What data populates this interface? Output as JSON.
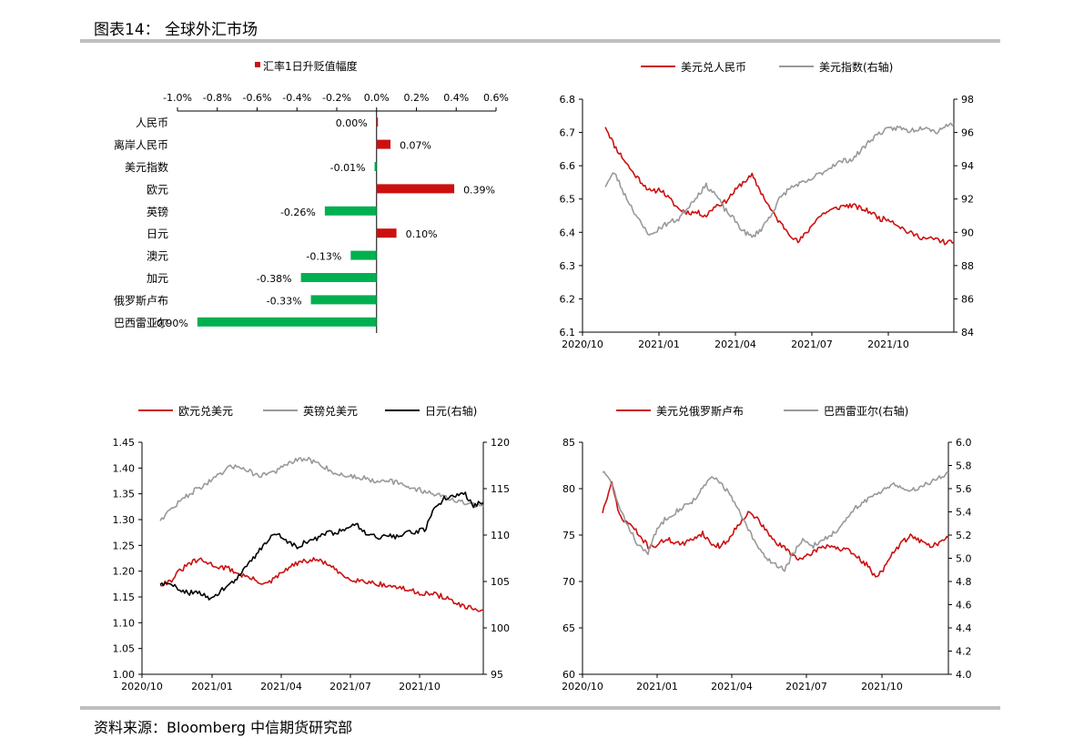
{
  "header": {
    "title": "图表14：  全球外汇市场"
  },
  "footer": {
    "source": "资料来源：Bloomberg 中信期货研究部"
  },
  "colors": {
    "red": "#cc1010",
    "green": "#00b050",
    "gray": "#999999",
    "black": "#000000",
    "rule": "#bfbfbf"
  },
  "chart_data": [
    {
      "id": "bar",
      "type": "bar",
      "orientation": "horizontal",
      "legend": "汇率1日升贬值幅度",
      "xlim": [
        -1.0,
        0.6
      ],
      "xticks": [
        "-1.0%",
        "-0.8%",
        "-0.6%",
        "-0.4%",
        "-0.2%",
        "0.0%",
        "0.2%",
        "0.4%",
        "0.6%"
      ],
      "categories": [
        "人民币",
        "离岸人民币",
        "美元指数",
        "欧元",
        "英镑",
        "日元",
        "澳元",
        "加元",
        "俄罗斯卢布",
        "巴西雷亚尔"
      ],
      "values": [
        0.0,
        0.07,
        -0.01,
        0.39,
        -0.26,
        0.1,
        -0.13,
        -0.38,
        -0.33,
        -0.9
      ],
      "labels": [
        "0.00%",
        "0.07%",
        "-0.01%",
        "0.39%",
        "-0.26%",
        "0.10%",
        "-0.13%",
        "-0.38%",
        "-0.33%",
        "-0.90%"
      ]
    },
    {
      "id": "cny",
      "type": "line",
      "xticks": [
        "2020/10",
        "2021/01",
        "2021/04",
        "2021/07",
        "2021/10"
      ],
      "ylim": [
        6.1,
        6.8
      ],
      "yticks": [
        "6.1",
        "6.2",
        "6.3",
        "6.4",
        "6.5",
        "6.6",
        "6.7",
        "6.8"
      ],
      "y2lim": [
        84,
        98
      ],
      "y2ticks": [
        "84",
        "86",
        "88",
        "90",
        "92",
        "94",
        "96",
        "98"
      ],
      "series": [
        {
          "name": "美元兑人民币",
          "color": "#cc1010",
          "axis": "left",
          "seed": 11,
          "values": [
            6.72,
            6.66,
            6.62,
            6.58,
            6.55,
            6.52,
            6.53,
            6.5,
            6.47,
            6.46,
            6.46,
            6.45,
            6.48,
            6.49,
            6.52,
            6.55,
            6.57,
            6.52,
            6.47,
            6.43,
            6.4,
            6.37,
            6.4,
            6.44,
            6.46,
            6.47,
            6.48,
            6.48,
            6.47,
            6.46,
            6.44,
            6.44,
            6.42,
            6.4,
            6.39,
            6.38,
            6.38,
            6.37,
            6.37
          ]
        },
        {
          "name": "美元指数(右轴)",
          "color": "#999999",
          "axis": "right",
          "seed": 23,
          "values": [
            92.8,
            93.6,
            92.4,
            91.4,
            90.4,
            89.8,
            90.3,
            90.6,
            90.8,
            91.5,
            92.2,
            92.8,
            92.3,
            91.4,
            90.8,
            90.1,
            89.7,
            90.2,
            91.0,
            92.0,
            92.6,
            92.9,
            93.0,
            93.4,
            93.7,
            94.1,
            94.3,
            94.4,
            95.0,
            95.6,
            96.0,
            96.2,
            96.3,
            96.1,
            96.2,
            96.4,
            96.0,
            96.4,
            96.5
          ]
        }
      ]
    },
    {
      "id": "eur",
      "type": "line",
      "xticks": [
        "2020/10",
        "2021/01",
        "2021/04",
        "2021/07",
        "2021/10"
      ],
      "ylim": [
        1.0,
        1.45
      ],
      "yticks": [
        "1.00",
        "1.05",
        "1.10",
        "1.15",
        "1.20",
        "1.25",
        "1.30",
        "1.35",
        "1.40",
        "1.45"
      ],
      "y2lim": [
        95,
        120
      ],
      "y2ticks": [
        "95",
        "100",
        "105",
        "110",
        "115",
        "120"
      ],
      "series": [
        {
          "name": "欧元兑美元",
          "color": "#cc1010",
          "axis": "left",
          "seed": 31,
          "values": [
            1.175,
            1.18,
            1.2,
            1.215,
            1.222,
            1.215,
            1.208,
            1.205,
            1.195,
            1.188,
            1.18,
            1.175,
            1.19,
            1.205,
            1.215,
            1.22,
            1.222,
            1.215,
            1.2,
            1.188,
            1.183,
            1.18,
            1.177,
            1.172,
            1.17,
            1.165,
            1.16,
            1.157,
            1.155,
            1.15,
            1.14,
            1.13,
            1.127,
            1.125
          ]
        },
        {
          "name": "英镑兑美元",
          "color": "#999999",
          "axis": "left",
          "seed": 47,
          "values": [
            1.3,
            1.318,
            1.335,
            1.35,
            1.362,
            1.373,
            1.385,
            1.4,
            1.405,
            1.395,
            1.385,
            1.39,
            1.395,
            1.408,
            1.415,
            1.417,
            1.41,
            1.4,
            1.388,
            1.385,
            1.383,
            1.38,
            1.375,
            1.378,
            1.372,
            1.365,
            1.36,
            1.355,
            1.35,
            1.345,
            1.338,
            1.332,
            1.328,
            1.325
          ]
        },
        {
          "name": "日元(右轴)",
          "color": "#000000",
          "axis": "right",
          "seed": 59,
          "values": [
            104.8,
            104.6,
            104.2,
            103.8,
            103.7,
            103.3,
            103.8,
            104.6,
            105.5,
            106.8,
            108.2,
            109.5,
            110.3,
            109.2,
            108.8,
            109.3,
            109.6,
            110.2,
            110.3,
            110.8,
            111.2,
            110.3,
            109.8,
            109.9,
            109.8,
            110.1,
            110.4,
            110.5,
            112.8,
            114.0,
            114.2,
            114.6,
            113.2,
            113.5
          ]
        }
      ]
    },
    {
      "id": "rub",
      "type": "line",
      "xticks": [
        "2020/10",
        "2021/01",
        "2021/04",
        "2021/07",
        "2021/10"
      ],
      "ylim": [
        60,
        85
      ],
      "yticks": [
        "60",
        "65",
        "70",
        "75",
        "80",
        "85"
      ],
      "y2lim": [
        4.0,
        6.0
      ],
      "y2ticks": [
        "4.0",
        "4.2",
        "4.4",
        "4.6",
        "4.8",
        "5.0",
        "5.2",
        "5.4",
        "5.6",
        "5.8",
        "6.0"
      ],
      "series": [
        {
          "name": "美元兑俄罗斯卢布",
          "color": "#cc1010",
          "axis": "left",
          "seed": 71,
          "values": [
            77.5,
            80.5,
            76.8,
            76.2,
            75.0,
            73.8,
            73.9,
            74.6,
            74.2,
            74.0,
            74.7,
            75.2,
            74.0,
            73.8,
            74.7,
            76.3,
            77.4,
            76.8,
            75.4,
            74.2,
            73.6,
            72.8,
            72.3,
            73.1,
            73.7,
            73.9,
            73.5,
            73.3,
            72.6,
            71.8,
            70.5,
            71.5,
            73.2,
            74.3,
            75.0,
            74.3,
            73.8,
            74.2,
            74.7
          ]
        },
        {
          "name": "巴西雷亚尔(右轴)",
          "color": "#999999",
          "axis": "right",
          "seed": 83,
          "values": [
            5.75,
            5.65,
            5.4,
            5.25,
            5.1,
            5.05,
            5.25,
            5.35,
            5.4,
            5.45,
            5.5,
            5.6,
            5.7,
            5.65,
            5.55,
            5.4,
            5.25,
            5.1,
            5.0,
            4.95,
            4.9,
            5.05,
            5.15,
            5.1,
            5.15,
            5.2,
            5.25,
            5.35,
            5.45,
            5.5,
            5.55,
            5.6,
            5.65,
            5.6,
            5.58,
            5.62,
            5.66,
            5.7,
            5.73
          ]
        }
      ]
    }
  ]
}
